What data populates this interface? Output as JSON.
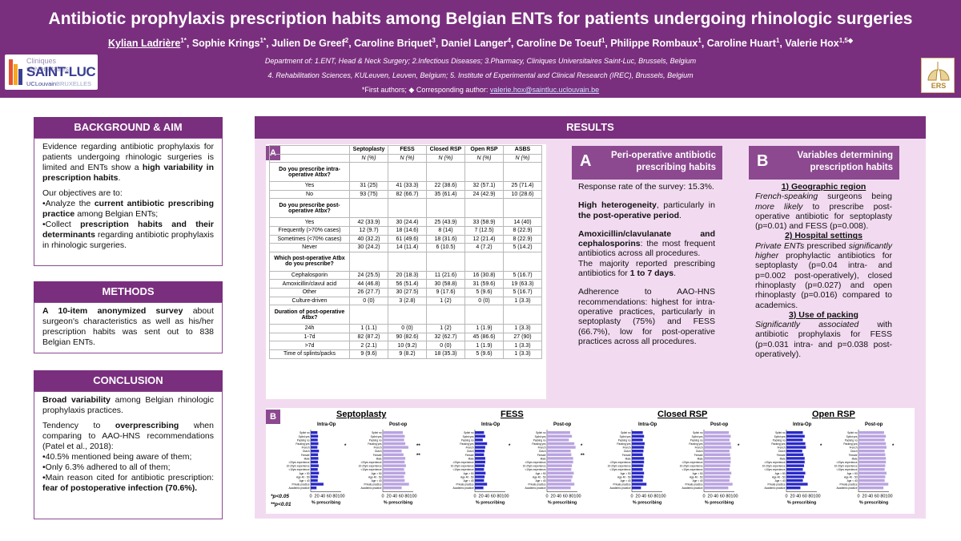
{
  "header": {
    "title": "Antibiotic prophylaxis prescription habits among Belgian ENTs for patients undergoing rhinologic surgeries",
    "authors": [
      {
        "name": "Kylian Ladrière",
        "sup": "1*",
        "underline": true
      },
      {
        "name": "Sophie Krings",
        "sup": "1*"
      },
      {
        "name": "Julien De Greef",
        "sup": "2"
      },
      {
        "name": "Caroline Briquet",
        "sup": "3"
      },
      {
        "name": "Daniel Langer",
        "sup": "4"
      },
      {
        "name": "Caroline De Toeuf",
        "sup": "1"
      },
      {
        "name": "Philippe Rombaux",
        "sup": "1"
      },
      {
        "name": "Caroline Huart",
        "sup": "1"
      },
      {
        "name": "Valerie Hox",
        "sup": "1,5◆"
      }
    ],
    "affiliation_1": "Department of: 1.ENT, Head & Neck Surgery; 2.Infectious Diseases; 3.Pharmacy, Cliniques Universitaires Saint-Luc, Brussels, Belgium",
    "affiliation_2": "4. Rehabilitation Sciences, KULeuven, Leuven, Belgium; 5. Institute of Experimental and Clinical Research (IREC), Brussels, Belgium",
    "corresponding_prefix": "*First authors; ◆ Corresponding author: ",
    "corresponding_email": "valerie.hox@saintluc.uclouvain.be",
    "logo_left": {
      "line1": "Cliniques universitaires",
      "line2": "SAINT-LUC",
      "line3": "UCLouvain",
      "line4": "BRUXELLES"
    },
    "logo_right": "ERS"
  },
  "background": {
    "heading": "BACKGROUND & AIM",
    "p1_a": "Evidence regarding antibiotic prophylaxis for patients undergoing rhinologic surgeries is limited and ENTs show a ",
    "p1_b": "high variability in prescription habits",
    "p1_c": ".",
    "p2": "Our objectives are to:",
    "p3_a": "•Analyze the ",
    "p3_b": "current antibiotic prescribing practice",
    "p3_c": " among Belgian ENTs;",
    "p4_a": "•Collect ",
    "p4_b": "prescription habits and their determinants",
    "p4_c": " regarding antibiotic prophylaxis in rhinologic surgeries."
  },
  "methods": {
    "heading": "METHODS",
    "p1_a": "A 10-item anonymized survey",
    "p1_b": " about surgeon's characteristics as well as his/her prescription habits was sent out to 838 Belgian ENTs."
  },
  "conclusion": {
    "heading": "CONCLUSION",
    "p1_a": "Broad variability",
    "p1_b": " among Belgian rhinologic prophylaxis practices.",
    "p2_a": "Tendency to ",
    "p2_b": "overprescribing",
    "p2_c": " when comparing to AAO-HNS recommendations (Patel et al., 2018):",
    "p3": "•40.5% mentioned being aware of them;",
    "p4": "•Only 6.3% adhered to all of them;",
    "p5_a": "•Main reason cited for antibiotic prescription: ",
    "p5_b": "fear of postoperative infection (70.6%)."
  },
  "results": {
    "heading": "RESULTS",
    "table_badge": "A",
    "table": {
      "columns": [
        "Septoplasty",
        "FESS",
        "Closed RSP",
        "Open RSP",
        "ASBS"
      ],
      "unit": "N (%)",
      "sections": [
        {
          "question": "Do you prescribe intra-operative Atbx?",
          "rows": [
            {
              "label": "Yes",
              "values": [
                "31 (25)",
                "41 (33.3)",
                "22 (38.6)",
                "32 (57.1)",
                "25 (71.4)"
              ]
            },
            {
              "label": "No",
              "values": [
                "93 (75)",
                "82 (66.7)",
                "35 (61.4)",
                "24 (42.9)",
                "10 (28.6)"
              ]
            }
          ]
        },
        {
          "question": "Do you prescribe post-operative Atbx?",
          "rows": [
            {
              "label": "Yes",
              "values": [
                "42 (33.9)",
                "30 (24.4)",
                "25 (43.9)",
                "33 (58.9)",
                "14 (40)"
              ]
            },
            {
              "label": "Frequently (>70% cases)",
              "values": [
                "12 (9.7)",
                "18 (14.6)",
                "8 (14)",
                "7 (12.5)",
                "8 (22.9)"
              ]
            },
            {
              "label": "Sometimes (<70% cases)",
              "values": [
                "40 (32.2)",
                "61 (49.6)",
                "18 (31.6)",
                "12 (21.4)",
                "8 (22.9)"
              ]
            },
            {
              "label": "Never",
              "values": [
                "30 (24.2)",
                "14 (11.4)",
                "6 (10.5)",
                "4 (7.2)",
                "5 (14.2)"
              ]
            }
          ]
        },
        {
          "question": "Which post-operative Atbx do you prescribe?",
          "rows": [
            {
              "label": "Cephalosporin",
              "values": [
                "24 (25.5)",
                "20 (18.3)",
                "11 (21.6)",
                "16 (30.8)",
                "5 (16.7)"
              ]
            },
            {
              "label": "Amoxicillin/clavul acid",
              "values": [
                "44 (46.8)",
                "56 (51.4)",
                "30 (58.8)",
                "31 (59.6)",
                "19 (63.3)"
              ]
            },
            {
              "label": "Other",
              "values": [
                "26 (27.7)",
                "30 (27.5)",
                "9 (17.6)",
                "5 (9.6)",
                "5 (16.7)"
              ]
            },
            {
              "label": "Culture-driven",
              "values": [
                "0 (0)",
                "3 (2.8)",
                "1 (2)",
                "0 (0)",
                "1 (3.3)"
              ]
            }
          ]
        },
        {
          "question": "Duration of post-operative Atbx?",
          "rows": [
            {
              "label": "24h",
              "values": [
                "1 (1.1)",
                "0 (0)",
                "1 (2)",
                "1 (1.9)",
                "1 (3.3)"
              ]
            },
            {
              "label": "1-7d",
              "values": [
                "82 (87.2)",
                "90 (82.6)",
                "32 (62.7)",
                "45 (86.6)",
                "27 (90)"
              ]
            },
            {
              "label": ">7d",
              "values": [
                "2 (2.1)",
                "10 (9.2)",
                "0 (0)",
                "1 (1.9)",
                "1 (3.3)"
              ]
            },
            {
              "label": "Time of splints/packs",
              "values": [
                "9 (9.6)",
                "9 (8.2)",
                "18 (35.3)",
                "5 (9.6)",
                "1 (3.3)"
              ]
            }
          ]
        }
      ]
    },
    "peri": {
      "letter": "A",
      "heading_1": "Peri-operative antibiotic",
      "heading_2": "prescribing habits",
      "p1": "Response rate of the survey: 15.3%.",
      "p2_a": "High heterogeneity",
      "p2_b": ", particularly in ",
      "p2_c": "the post-operative period",
      "p2_d": ".",
      "p3_a": "Amoxicillin/clavulanate and cephalosporins",
      "p3_b": ": the most frequent antibiotics across all procedures.",
      "p3_c": "The majority reported prescribing antibiotics for ",
      "p3_d": "1 to 7 days",
      "p3_e": ".",
      "p4": "Adherence to AAO-HNS recommendations: highest for intra-operative practices, particularly in septoplasty (75%) and FESS (66.7%), low for post-operative practices across all procedures."
    },
    "vars": {
      "letter": "B",
      "heading_1": "Variables determining",
      "heading_2": "prescription habits",
      "s1_title": "1) Geographic region",
      "s1_a": "French-speaking",
      "s1_b": " surgeons being ",
      "s1_c": "more likely",
      "s1_d": " to prescribe post-operative antibiotic for septoplasty (p=0.01) and FESS (p=0.008).",
      "s2_title": "2) Hospital settings",
      "s2_a": "Private ENTs",
      "s2_b": " prescribed ",
      "s2_c": "significantly higher",
      "s2_d": " prophylactic antibiotics for septoplasty (p=0.04 intra- and p=0.002 post-operatively), closed rhinoplasty (p=0.027) and open rhinoplasty (p=0.016) compared to academics.",
      "s3_title": "3) Use of packing",
      "s3_a": "Significantly associated",
      "s3_b": " with antibiotic prophylaxis for FESS (p=0.031 intra- and p=0.038 post-operatively)."
    },
    "charts_badge": "B",
    "charts_note_1": "*p<0.05",
    "charts_note_2": "**p<0.01",
    "axis_label": "% prescribing",
    "tick_labels": [
      "0",
      "20",
      "40",
      "60",
      "80",
      "100"
    ],
    "sub_intra": "Intra-Op",
    "sub_post": "Post-op",
    "row_labels": [
      "Splint no",
      "Splint yes",
      "Packing no",
      "Packing yes",
      "French",
      "Dutch",
      "Female",
      "Male",
      ">20yrs experience",
      "10-20yrs experience",
      "<10yrs experience",
      "Age > 50",
      "Age 40 - 50",
      "Age < 40",
      "Private practice",
      "Academic practice"
    ],
    "chart_data": [
      {
        "type": "bar",
        "title": "Septoplasty",
        "panel": "Intra-Op",
        "categories": [
          "Splint no",
          "Splint yes",
          "Packing no",
          "Packing yes",
          "French",
          "Dutch",
          "Female",
          "Male",
          ">20yrs experience",
          "10-20yrs experience",
          "<10yrs experience",
          "Age > 50",
          "Age 40 - 50",
          "Age < 40",
          "Private practice",
          "Academic practice"
        ],
        "values": [
          22,
          24,
          23,
          25,
          22,
          27,
          24,
          25,
          24,
          26,
          23,
          27,
          24,
          23,
          42,
          19
        ],
        "xlabel": "% prescribing",
        "xlim": [
          0,
          100
        ],
        "color": "#2a2ac8",
        "marks": [
          "*"
        ]
      },
      {
        "type": "bar",
        "title": "Septoplasty",
        "panel": "Post-op",
        "categories": [
          "Splint no",
          "Splint yes",
          "Packing no",
          "Packing yes",
          "French",
          "Dutch",
          "Female",
          "Male",
          ">20yrs experience",
          "10-20yrs experience",
          "<10yrs experience",
          "Age > 50",
          "Age 40 - 50",
          "Age < 40",
          "Private practice",
          "Academic practice"
        ],
        "values": [
          66,
          72,
          70,
          74,
          84,
          62,
          68,
          74,
          72,
          76,
          70,
          74,
          70,
          72,
          86,
          62
        ],
        "xlabel": "% prescribing",
        "xlim": [
          0,
          100
        ],
        "color": "#b9a3e0",
        "marks": [
          "**",
          "**"
        ]
      },
      {
        "type": "bar",
        "title": "FESS",
        "panel": "Intra-Op",
        "categories": [
          "Splint no",
          "Splint yes",
          "Packing no",
          "Packing yes",
          "French",
          "Dutch",
          "Female",
          "Male",
          ">20yrs experience",
          "10-20yrs experience",
          "<10yrs experience",
          "Age > 50",
          "Age 40 - 50",
          "Age < 40",
          "Private practice",
          "Academic practice"
        ],
        "values": [
          30,
          34,
          26,
          40,
          34,
          32,
          30,
          34,
          34,
          32,
          30,
          35,
          32,
          30,
          40,
          28
        ],
        "xlabel": "% prescribing",
        "xlim": [
          0,
          100
        ],
        "color": "#2a2ac8",
        "marks": [
          "*"
        ]
      },
      {
        "type": "bar",
        "title": "FESS",
        "panel": "Post-op",
        "categories": [
          "Splint no",
          "Splint yes",
          "Packing no",
          "Packing yes",
          "French",
          "Dutch",
          "Female",
          "Male",
          ">20yrs experience",
          "10-20yrs experience",
          "<10yrs experience",
          "Age > 50",
          "Age 40 - 50",
          "Age < 40",
          "Private practice",
          "Academic practice"
        ],
        "values": [
          76,
          82,
          72,
          90,
          94,
          78,
          80,
          86,
          86,
          82,
          80,
          88,
          84,
          80,
          90,
          78
        ],
        "xlabel": "% prescribing",
        "xlim": [
          0,
          100
        ],
        "color": "#b9a3e0",
        "marks": [
          "*",
          "**"
        ]
      },
      {
        "type": "bar",
        "title": "Closed RSP",
        "panel": "Intra-Op",
        "categories": [
          "Splint no",
          "Splint yes",
          "Packing no",
          "Packing yes",
          "French",
          "Dutch",
          "Female",
          "Male",
          ">20yrs experience",
          "10-20yrs experience",
          "<10yrs experience",
          "Age > 50",
          "Age 40 - 50",
          "Age < 40",
          "Private practice",
          "Academic practice"
        ],
        "values": [
          36,
          40,
          36,
          42,
          40,
          38,
          36,
          40,
          40,
          38,
          36,
          40,
          38,
          36,
          48,
          30
        ],
        "xlabel": "% prescribing",
        "xlim": [
          0,
          100
        ],
        "color": "#2a2ac8",
        "marks": []
      },
      {
        "type": "bar",
        "title": "Closed RSP",
        "panel": "Post-op",
        "categories": [
          "Splint no",
          "Splint yes",
          "Packing no",
          "Packing yes",
          "French",
          "Dutch",
          "Female",
          "Male",
          ">20yrs experience",
          "10-20yrs experience",
          "<10yrs experience",
          "Age > 50",
          "Age 40 - 50",
          "Age < 40",
          "Private practice",
          "Academic practice"
        ],
        "values": [
          82,
          88,
          84,
          88,
          90,
          84,
          86,
          88,
          88,
          86,
          84,
          90,
          86,
          84,
          94,
          80
        ],
        "xlabel": "% prescribing",
        "xlim": [
          0,
          100
        ],
        "color": "#b9a3e0",
        "marks": [
          "*"
        ]
      },
      {
        "type": "bar",
        "title": "Open RSP",
        "panel": "Intra-Op",
        "categories": [
          "Splint no",
          "Splint yes",
          "Packing no",
          "Packing yes",
          "French",
          "Dutch",
          "Female",
          "Male",
          ">20yrs experience",
          "10-20yrs experience",
          "<10yrs experience",
          "Age > 50",
          "Age 40 - 50",
          "Age < 40",
          "Private practice",
          "Academic practice"
        ],
        "values": [
          54,
          60,
          54,
          62,
          64,
          52,
          56,
          60,
          60,
          58,
          54,
          62,
          58,
          54,
          70,
          46
        ],
        "xlabel": "% prescribing",
        "xlim": [
          0,
          100
        ],
        "color": "#2a2ac8",
        "marks": [
          "*"
        ]
      },
      {
        "type": "bar",
        "title": "Open RSP",
        "panel": "Post-op",
        "categories": [
          "Splint no",
          "Splint yes",
          "Packing no",
          "Packing yes",
          "French",
          "Dutch",
          "Female",
          "Male",
          ">20yrs experience",
          "10-20yrs experience",
          "<10yrs experience",
          "Age > 50",
          "Age 40 - 50",
          "Age < 40",
          "Private practice",
          "Academic practice"
        ],
        "values": [
          84,
          90,
          86,
          90,
          92,
          86,
          88,
          90,
          90,
          88,
          86,
          92,
          88,
          86,
          98,
          82
        ],
        "xlabel": "% prescribing",
        "xlim": [
          0,
          100
        ],
        "color": "#b9a3e0",
        "marks": [
          "*"
        ]
      }
    ]
  },
  "colors": {
    "primary": "#7a2f7e",
    "accent": "#8c4990",
    "panel": "#f2dbf0",
    "intra_bar": "#2a2ac8",
    "post_bar": "#b9a3e0"
  }
}
